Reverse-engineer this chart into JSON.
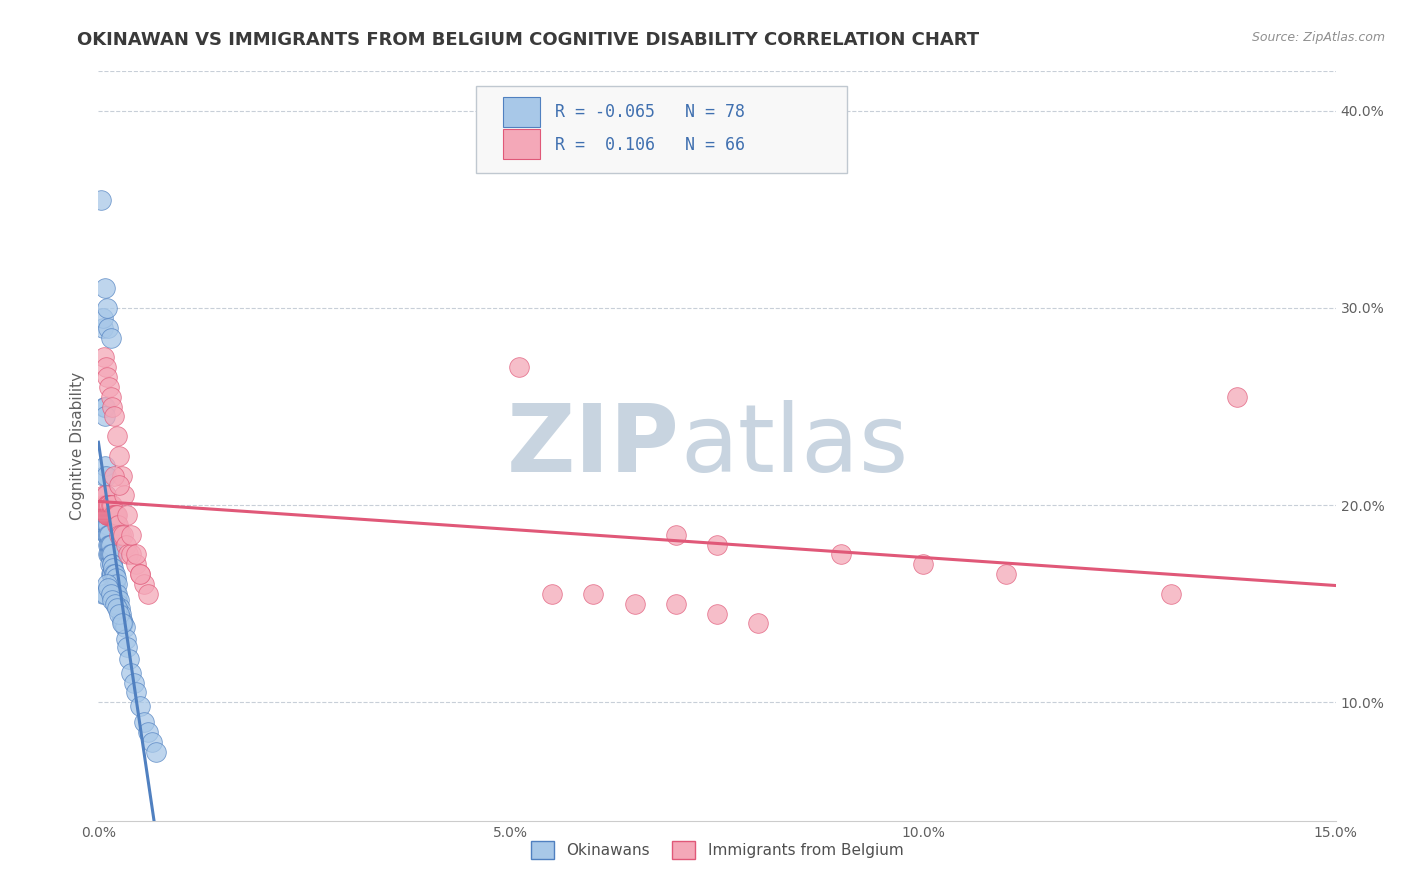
{
  "title": "OKINAWAN VS IMMIGRANTS FROM BELGIUM COGNITIVE DISABILITY CORRELATION CHART",
  "source_text": "Source: ZipAtlas.com",
  "ylabel": "Cognitive Disability",
  "xlim": [
    0.0,
    0.15
  ],
  "ylim": [
    0.04,
    0.42
  ],
  "xticks": [
    0.0,
    0.05,
    0.1,
    0.15
  ],
  "xtick_labels": [
    "0.0%",
    "5.0%",
    "10.0%",
    "15.0%"
  ],
  "yticks": [
    0.1,
    0.2,
    0.3,
    0.4
  ],
  "ytick_labels": [
    "10.0%",
    "20.0%",
    "30.0%",
    "40.0%"
  ],
  "legend_labels": [
    "Okinawans",
    "Immigrants from Belgium"
  ],
  "R_okinawan": -0.065,
  "N_okinawan": 78,
  "R_belgium": 0.106,
  "N_belgium": 66,
  "color_okinawan": "#a8c8e8",
  "color_belgium": "#f4a8b8",
  "color_line_okinawan": "#5080c0",
  "color_line_belgium": "#e05878",
  "color_dashed": "#90b8d8",
  "watermark_zip": "ZIP",
  "watermark_atlas": "atlas",
  "watermark_color_zip": "#c8d4e0",
  "watermark_color_atlas": "#c8d4e0",
  "background_color": "#ffffff",
  "title_color": "#3a3a3a",
  "axis_label_color": "#606060",
  "tick_label_color": "#606060",
  "grid_color": "#c8cfd8",
  "legend_text_color": "#4070b0",
  "title_fontsize": 13,
  "axis_label_fontsize": 11,
  "tick_fontsize": 10,
  "okinawan_x": [
    0.0003,
    0.0005,
    0.0006,
    0.0007,
    0.0007,
    0.0008,
    0.0008,
    0.0008,
    0.0009,
    0.0009,
    0.001,
    0.001,
    0.001,
    0.001,
    0.0011,
    0.0011,
    0.0011,
    0.0012,
    0.0012,
    0.0012,
    0.0012,
    0.0013,
    0.0013,
    0.0013,
    0.0014,
    0.0014,
    0.0014,
    0.0015,
    0.0015,
    0.0015,
    0.0016,
    0.0016,
    0.0016,
    0.0017,
    0.0017,
    0.0018,
    0.0018,
    0.0019,
    0.0019,
    0.002,
    0.002,
    0.0021,
    0.0021,
    0.0022,
    0.0022,
    0.0023,
    0.0024,
    0.0025,
    0.0026,
    0.0027,
    0.0028,
    0.003,
    0.0032,
    0.0033,
    0.0035,
    0.0037,
    0.004,
    0.0043,
    0.0046,
    0.005,
    0.0055,
    0.006,
    0.0065,
    0.007,
    0.0005,
    0.0008,
    0.001,
    0.0012,
    0.0015,
    0.0017,
    0.002,
    0.0022,
    0.0025,
    0.0028,
    0.0008,
    0.001,
    0.0012,
    0.0015
  ],
  "okinawan_y": [
    0.355,
    0.29,
    0.295,
    0.25,
    0.215,
    0.25,
    0.245,
    0.22,
    0.215,
    0.205,
    0.2,
    0.195,
    0.19,
    0.185,
    0.195,
    0.19,
    0.185,
    0.19,
    0.185,
    0.18,
    0.175,
    0.185,
    0.18,
    0.175,
    0.18,
    0.175,
    0.17,
    0.18,
    0.175,
    0.165,
    0.175,
    0.17,
    0.165,
    0.17,
    0.165,
    0.168,
    0.162,
    0.165,
    0.158,
    0.165,
    0.16,
    0.163,
    0.155,
    0.16,
    0.152,
    0.155,
    0.15,
    0.152,
    0.148,
    0.145,
    0.142,
    0.14,
    0.138,
    0.132,
    0.128,
    0.122,
    0.115,
    0.11,
    0.105,
    0.098,
    0.09,
    0.085,
    0.08,
    0.075,
    0.155,
    0.155,
    0.16,
    0.158,
    0.155,
    0.152,
    0.15,
    0.148,
    0.145,
    0.14,
    0.31,
    0.3,
    0.29,
    0.285
  ],
  "belgium_x": [
    0.0004,
    0.0006,
    0.0007,
    0.0008,
    0.0009,
    0.001,
    0.001,
    0.0011,
    0.0011,
    0.0012,
    0.0012,
    0.0013,
    0.0013,
    0.0014,
    0.0015,
    0.0015,
    0.0016,
    0.0017,
    0.0018,
    0.0019,
    0.002,
    0.0021,
    0.0022,
    0.0023,
    0.0024,
    0.0025,
    0.0027,
    0.003,
    0.0033,
    0.0036,
    0.004,
    0.0045,
    0.005,
    0.0055,
    0.006,
    0.0007,
    0.0009,
    0.0011,
    0.0013,
    0.0015,
    0.0017,
    0.0019,
    0.0022,
    0.0025,
    0.0028,
    0.0031,
    0.0035,
    0.004,
    0.0045,
    0.005,
    0.0019,
    0.0025,
    0.051,
    0.07,
    0.075,
    0.09,
    0.1,
    0.11,
    0.13,
    0.138,
    0.055,
    0.06,
    0.065,
    0.07,
    0.075,
    0.08
  ],
  "belgium_y": [
    0.2,
    0.2,
    0.205,
    0.2,
    0.205,
    0.2,
    0.195,
    0.2,
    0.195,
    0.2,
    0.195,
    0.2,
    0.195,
    0.195,
    0.2,
    0.195,
    0.195,
    0.2,
    0.195,
    0.195,
    0.195,
    0.195,
    0.19,
    0.195,
    0.19,
    0.185,
    0.185,
    0.185,
    0.18,
    0.175,
    0.175,
    0.17,
    0.165,
    0.16,
    0.155,
    0.275,
    0.27,
    0.265,
    0.26,
    0.255,
    0.25,
    0.245,
    0.235,
    0.225,
    0.215,
    0.205,
    0.195,
    0.185,
    0.175,
    0.165,
    0.215,
    0.21,
    0.27,
    0.185,
    0.18,
    0.175,
    0.17,
    0.165,
    0.155,
    0.255,
    0.155,
    0.155,
    0.15,
    0.15,
    0.145,
    0.14
  ]
}
